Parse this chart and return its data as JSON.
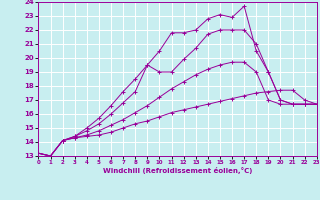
{
  "xlabel": "Windchill (Refroidissement éolien,°C)",
  "xlim": [
    0,
    23
  ],
  "ylim": [
    13,
    24
  ],
  "yticks": [
    13,
    14,
    15,
    16,
    17,
    18,
    19,
    20,
    21,
    22,
    23,
    24
  ],
  "xticks": [
    0,
    1,
    2,
    3,
    4,
    5,
    6,
    7,
    8,
    9,
    10,
    11,
    12,
    13,
    14,
    15,
    16,
    17,
    18,
    19,
    20,
    21,
    22,
    23
  ],
  "bg_color": "#c8eef0",
  "grid_color": "#ffffff",
  "line_color": "#990099",
  "x": [
    0,
    1,
    2,
    3,
    4,
    5,
    6,
    7,
    8,
    9,
    10,
    11,
    12,
    13,
    14,
    15,
    16,
    17,
    18,
    19,
    20,
    21,
    22,
    23
  ],
  "series": [
    [
      13.2,
      13.0,
      14.1,
      14.3,
      14.4,
      14.5,
      14.7,
      15.0,
      15.3,
      15.5,
      15.8,
      16.1,
      16.3,
      16.5,
      16.7,
      16.9,
      17.1,
      17.3,
      17.5,
      17.6,
      17.7,
      17.7,
      17.0,
      16.7
    ],
    [
      13.2,
      13.0,
      14.1,
      14.3,
      14.5,
      14.8,
      15.2,
      15.6,
      16.1,
      16.6,
      17.2,
      17.8,
      18.3,
      18.8,
      19.2,
      19.5,
      19.7,
      19.7,
      19.0,
      17.0,
      16.7,
      16.7,
      16.7,
      16.7
    ],
    [
      13.2,
      13.0,
      14.1,
      14.4,
      14.8,
      15.3,
      16.0,
      16.8,
      17.6,
      19.5,
      19.0,
      19.0,
      19.9,
      20.7,
      21.7,
      22.0,
      22.0,
      22.0,
      21.0,
      19.0,
      17.0,
      16.7,
      16.7,
      16.7
    ],
    [
      13.2,
      13.0,
      14.1,
      14.4,
      15.0,
      15.7,
      16.6,
      17.6,
      18.5,
      19.5,
      20.5,
      21.8,
      21.8,
      22.0,
      22.8,
      23.1,
      22.9,
      23.7,
      20.5,
      19.0,
      17.0,
      16.7,
      16.7,
      16.7
    ]
  ]
}
